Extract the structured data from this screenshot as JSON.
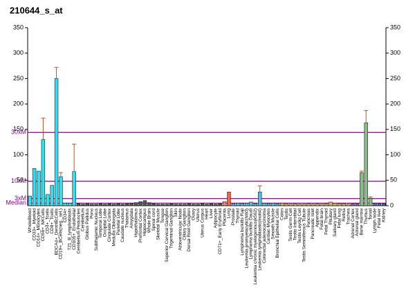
{
  "chart_data": {
    "type": "bar",
    "title": "210644_s_at",
    "categories": [
      "WholeBlood",
      "CD33+_Myeloid",
      "CD14+_Monocytes",
      "CD56+_NKCells",
      "CD4+_Tcells",
      "CD8+_Tcells",
      "BDCA4+_DentriticCells",
      "CD19+_BCells(neg._sel.)",
      "CD34+",
      "721_B_lymphoblasts",
      "CD105+_Endothelial",
      "Cerebellum Peduncles",
      "Cerebellum",
      "Globus Pallidus",
      "Pons",
      "Subthalamic Nucleus",
      "Temporal Lobe",
      "Occipital Lobe",
      "Cingulate Cortex",
      "Medulla Oblongata",
      "Parietal Lobe",
      "Caudate nucleus",
      "Thalamus",
      "Amygdala",
      "Hypothalamus",
      "Prefrontal Cortex",
      "Hippocampus",
      "Whole Brain",
      "Spinal cord",
      "Skeletal Muscle",
      "Tongue",
      "Superior Cervical Ganglion",
      "Trigeminal Ganglion",
      "Skin",
      "Atrioventricular Node",
      "Ciliary Ganglion",
      "Dorsal Root Ganglion",
      "Ovary",
      "Uterus",
      "Uterus Corpus",
      "Heart",
      "Liver",
      "Adipocyte",
      "CD71+_Early Erythroid",
      "Placenta",
      "Lung",
      "Prostate",
      "Thyroid",
      "Lymphoma burkitts Raji",
      "Leukemia promyelocytic(hl60)",
      "Lymphoma burkitts Daudi",
      "Leukemia chronic myelogenous(k562)",
      "Leukemia lymphoblastic(molt4)",
      "Colorectal adenocarcinoma",
      "Cardiac Myocytes",
      "Smooth Muscle",
      "Bronchial Epithelial Cells",
      "Colon",
      "Testis",
      "Testis Germ Cell",
      "Testis Interstitial",
      "Testis Leydig Cell",
      "Testis Seminiferous Tubule",
      "Pancreas",
      "Pancreatic Islet",
      "Appendix",
      "Fetal brain",
      "Fetal Thyroid",
      "Pituitary",
      "Salivary gland",
      "Fetal lung",
      "Retina",
      "Trachea",
      "Adrenal Cortex",
      "Adrenal gland",
      "Bone marrow",
      "Thymus",
      "Tonsil",
      "Lymph node",
      "Fetal liver",
      "Kidney"
    ],
    "values": [
      19,
      73,
      68,
      130,
      22,
      40,
      250,
      57,
      5,
      5,
      67,
      4,
      3,
      4,
      3,
      3,
      4,
      3,
      4,
      3,
      4,
      3,
      4,
      5,
      6,
      8,
      10,
      6,
      4,
      3,
      3,
      3,
      4,
      3,
      3,
      3,
      4,
      3,
      3,
      5,
      3,
      4,
      3,
      4,
      8,
      27,
      4,
      5,
      4,
      5,
      7,
      4,
      27,
      5,
      4,
      5,
      4,
      5,
      4,
      3,
      4,
      3,
      3,
      4,
      3,
      4,
      3,
      4,
      7,
      5,
      4,
      4,
      3,
      4,
      4,
      65,
      163,
      14,
      5,
      4,
      4
    ],
    "errors": [
      null,
      null,
      null,
      42,
      null,
      null,
      22,
      8,
      null,
      null,
      54,
      null,
      null,
      null,
      null,
      null,
      null,
      null,
      null,
      null,
      null,
      null,
      null,
      null,
      null,
      null,
      null,
      null,
      null,
      null,
      null,
      null,
      null,
      null,
      null,
      null,
      null,
      null,
      null,
      null,
      null,
      null,
      null,
      null,
      null,
      null,
      null,
      null,
      null,
      null,
      null,
      null,
      12,
      null,
      null,
      null,
      null,
      null,
      null,
      null,
      null,
      null,
      null,
      null,
      null,
      null,
      null,
      null,
      null,
      null,
      null,
      null,
      null,
      null,
      null,
      3,
      24,
      3,
      null,
      null,
      null
    ],
    "colors": [
      "#33ddee",
      "#33ddee",
      "#33ddee",
      "#33ddee",
      "#33ddee",
      "#33ddee",
      "#33ddee",
      "#33ddee",
      "#33ddee",
      "#33ddee",
      "#33ddee",
      "#555555",
      "#555555",
      "#555555",
      "#555555",
      "#555555",
      "#555555",
      "#555555",
      "#555555",
      "#555555",
      "#555555",
      "#555555",
      "#555555",
      "#555555",
      "#555555",
      "#555555",
      "#555555",
      "#555555",
      "#555555",
      "#555555",
      "#555555",
      "#555555",
      "#555555",
      "#555555",
      "#555555",
      "#555555",
      "#555555",
      "#555555",
      "#555555",
      "#555555",
      "#555555",
      "#555555",
      "#555555",
      "#555555",
      "#ee8866",
      "#ee6644",
      "#55bbdd",
      "#55bbdd",
      "#55bbdd",
      "#55bbdd",
      "#55bbdd",
      "#55bbdd",
      "#55bbdd",
      "#55bbdd",
      "#55bbdd",
      "#55bbdd",
      "#55bbdd",
      "#ddaa66",
      "#ddaa66",
      "#ddaa66",
      "#ddaa66",
      "#ddaa66",
      "#ddaa66",
      "#ddaa66",
      "#ddaa66",
      "#ddaa66",
      "#ddaa66",
      "#ddaa66",
      "#ddaa66",
      "#ddaa66",
      "#ddaa66",
      "#ddaa66",
      "#ddaa66",
      "#8866aa",
      "#8866aa",
      "#88bb88",
      "#88bb88",
      "#88bb88",
      "#5566aa",
      "#5566aa",
      "#5566aa"
    ],
    "ylim": [
      0,
      350
    ],
    "yticks": [
      50,
      100,
      150,
      200,
      250,
      300,
      350
    ],
    "y2lim": [
      0,
      350
    ],
    "y2ticks": [
      0,
      50,
      100,
      150,
      200,
      250,
      300,
      350
    ],
    "ref_lines": [
      {
        "label": "30xM",
        "value": 144
      },
      {
        "label": "10xM",
        "value": 48
      },
      {
        "label": "3xM",
        "value": 14
      },
      {
        "label": "Median",
        "value": 5
      }
    ],
    "ref_color": "#880088"
  }
}
